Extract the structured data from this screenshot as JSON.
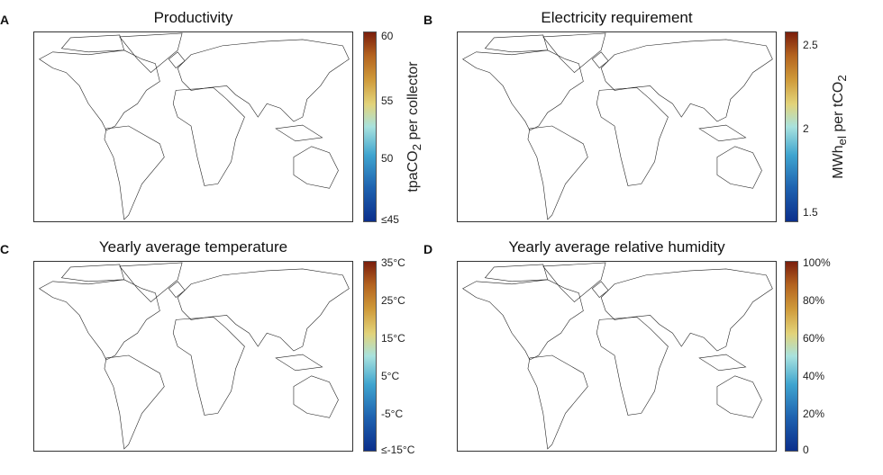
{
  "panels": [
    {
      "letter": "A",
      "title": "Productivity",
      "ticks": [
        "60",
        "55",
        "50",
        "≤45"
      ],
      "cbar_label": "tpaCO",
      "cbar_sub": "2",
      "cbar_rest": " per collector",
      "range": [
        45,
        60
      ]
    },
    {
      "letter": "B",
      "title": "Electricity requirement",
      "ticks": [
        "2.5",
        "2",
        "1.5"
      ],
      "cbar_label": "MWh",
      "cbar_sub": "el",
      "cbar_rest": " per tCO",
      "cbar_sub2": "2",
      "range": [
        1.5,
        2.6
      ]
    },
    {
      "letter": "C",
      "title": "Yearly average temperature",
      "ticks": [
        "35°C",
        "25°C",
        "15°C",
        "5°C",
        "-5°C",
        "≤-15°C"
      ],
      "range": [
        -15,
        35
      ]
    },
    {
      "letter": "D",
      "title": "Yearly average relative humidity",
      "ticks": [
        "100%",
        "80%",
        "60%",
        "40%",
        "20%",
        "0"
      ],
      "range": [
        0,
        100
      ]
    }
  ],
  "colors": {
    "low": "#0b2f8c",
    "mid": "#a8e2de",
    "high": "#7a1e0c"
  }
}
